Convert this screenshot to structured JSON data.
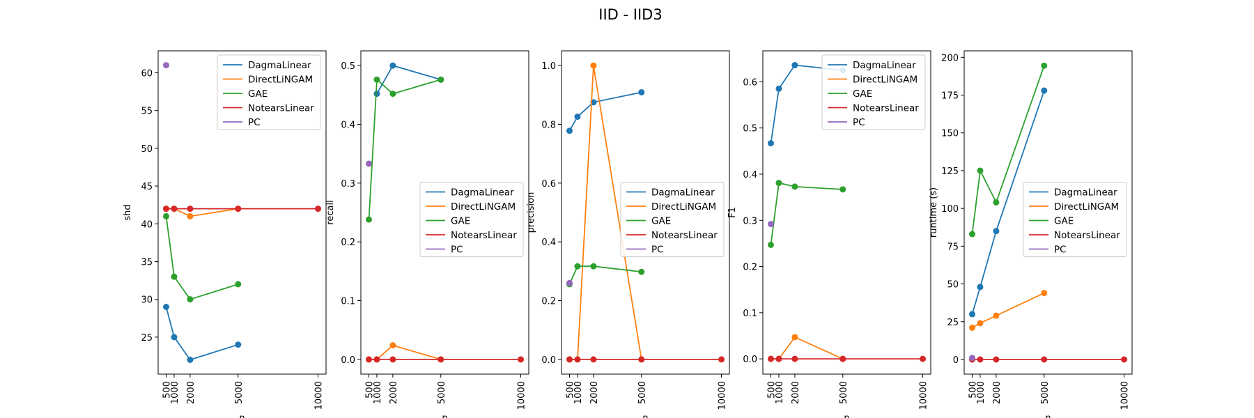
{
  "figure": {
    "title": "IID - IID3"
  },
  "series_colors": {
    "DagmaLinear": "#1f77b4",
    "DirectLiNGAM": "#ff7f0e",
    "GAE": "#2ca02c",
    "NotearsLinear": "#d62728",
    "PC": "#9467bd"
  },
  "chart_data": [
    {
      "type": "line",
      "xlabel": "n",
      "ylabel": "shd",
      "xlim": [
        0,
        10500
      ],
      "ylim": [
        20.1,
        62.9
      ],
      "xticks": [
        "500",
        "1000",
        "2000",
        "5000",
        "10000"
      ],
      "yticks": [
        "25",
        "30",
        "35",
        "40",
        "45",
        "50",
        "55",
        "60"
      ],
      "legend": "upper right",
      "series": [
        {
          "name": "DagmaLinear",
          "x": [
            500,
            1000,
            2000,
            5000
          ],
          "y": [
            29,
            25,
            22,
            24
          ]
        },
        {
          "name": "DirectLiNGAM",
          "x": [
            500,
            1000,
            2000,
            5000
          ],
          "y": [
            42,
            42,
            41,
            42
          ]
        },
        {
          "name": "GAE",
          "x": [
            500,
            1000,
            2000,
            5000
          ],
          "y": [
            41,
            33,
            30,
            32
          ]
        },
        {
          "name": "NotearsLinear",
          "x": [
            500,
            1000,
            2000,
            5000,
            10000
          ],
          "y": [
            42,
            42,
            42,
            42,
            42
          ]
        },
        {
          "name": "PC",
          "x": [
            500
          ],
          "y": [
            61
          ]
        }
      ]
    },
    {
      "type": "line",
      "xlabel": "n",
      "ylabel": "recall",
      "xlim": [
        0,
        10500
      ],
      "ylim": [
        -0.025,
        0.525
      ],
      "xticks": [
        "500",
        "1000",
        "2000",
        "5000",
        "10000"
      ],
      "yticks": [
        "0.0",
        "0.1",
        "0.2",
        "0.3",
        "0.4",
        "0.5"
      ],
      "legend": "center right",
      "series": [
        {
          "name": "DagmaLinear",
          "x": [
            1000,
            2000,
            5000
          ],
          "y": [
            0.452,
            0.5,
            0.476
          ]
        },
        {
          "name": "DirectLiNGAM",
          "x": [
            500,
            1000,
            2000,
            5000
          ],
          "y": [
            0,
            0,
            0.024,
            0
          ]
        },
        {
          "name": "GAE",
          "x": [
            500,
            1000,
            2000,
            5000
          ],
          "y": [
            0.238,
            0.476,
            0.452,
            0.476
          ]
        },
        {
          "name": "NotearsLinear",
          "x": [
            500,
            1000,
            2000,
            5000,
            10000
          ],
          "y": [
            0,
            0,
            0,
            0,
            0
          ]
        },
        {
          "name": "PC",
          "x": [
            500
          ],
          "y": [
            0.333
          ]
        }
      ]
    },
    {
      "type": "line",
      "xlabel": "n",
      "ylabel": "precision",
      "xlim": [
        0,
        10500
      ],
      "ylim": [
        -0.05,
        1.05
      ],
      "xticks": [
        "500",
        "1000",
        "2000",
        "5000",
        "10000"
      ],
      "yticks": [
        "0.0",
        "0.2",
        "0.4",
        "0.6",
        "0.8",
        "1.0"
      ],
      "legend": "center right",
      "series": [
        {
          "name": "DagmaLinear",
          "x": [
            500,
            1000,
            2000,
            5000
          ],
          "y": [
            0.778,
            0.826,
            0.875,
            0.909
          ]
        },
        {
          "name": "DirectLiNGAM",
          "x": [
            500,
            1000,
            2000,
            5000
          ],
          "y": [
            0,
            0,
            1.0,
            0
          ]
        },
        {
          "name": "GAE",
          "x": [
            500,
            1000,
            2000,
            5000
          ],
          "y": [
            0.256,
            0.317,
            0.317,
            0.298
          ]
        },
        {
          "name": "NotearsLinear",
          "x": [
            500,
            1000,
            2000,
            5000,
            10000
          ],
          "y": [
            0,
            0,
            0,
            0,
            0
          ]
        },
        {
          "name": "PC",
          "x": [
            500
          ],
          "y": [
            0.26
          ]
        }
      ]
    },
    {
      "type": "line",
      "xlabel": "n",
      "ylabel": "F1",
      "xlim": [
        0,
        10500
      ],
      "ylim": [
        -0.033,
        0.667
      ],
      "xticks": [
        "500",
        "1000",
        "2000",
        "5000",
        "10000"
      ],
      "yticks": [
        "0.0",
        "0.1",
        "0.2",
        "0.3",
        "0.4",
        "0.5",
        "0.6"
      ],
      "legend": "upper right",
      "series": [
        {
          "name": "DagmaLinear",
          "x": [
            500,
            1000,
            2000,
            5000
          ],
          "y": [
            0.467,
            0.585,
            0.636,
            0.625
          ]
        },
        {
          "name": "DirectLiNGAM",
          "x": [
            500,
            1000,
            2000,
            5000
          ],
          "y": [
            0,
            0,
            0.047,
            0
          ]
        },
        {
          "name": "GAE",
          "x": [
            500,
            1000,
            2000,
            5000
          ],
          "y": [
            0.247,
            0.381,
            0.373,
            0.367
          ]
        },
        {
          "name": "NotearsLinear",
          "x": [
            500,
            1000,
            2000,
            5000,
            10000
          ],
          "y": [
            0,
            0,
            0,
            0,
            0
          ]
        },
        {
          "name": "PC",
          "x": [
            500
          ],
          "y": [
            0.292
          ]
        }
      ]
    },
    {
      "type": "line",
      "xlabel": "n",
      "ylabel": "runtime (s)",
      "xlim": [
        0,
        10500
      ],
      "ylim": [
        -9.7,
        204.3
      ],
      "xticks": [
        "500",
        "1000",
        "2000",
        "5000",
        "10000"
      ],
      "yticks": [
        "0",
        "25",
        "50",
        "75",
        "100",
        "125",
        "150",
        "175",
        "200"
      ],
      "legend": "center right",
      "series": [
        {
          "name": "DagmaLinear",
          "x": [
            500,
            1000,
            2000,
            5000
          ],
          "y": [
            30,
            48,
            85,
            178
          ]
        },
        {
          "name": "DirectLiNGAM",
          "x": [
            500,
            1000,
            2000,
            5000
          ],
          "y": [
            21,
            24,
            29,
            44
          ]
        },
        {
          "name": "GAE",
          "x": [
            500,
            1000,
            2000,
            5000
          ],
          "y": [
            83,
            125,
            104,
            194.5
          ]
        },
        {
          "name": "NotearsLinear",
          "x": [
            500,
            1000,
            2000,
            5000,
            10000
          ],
          "y": [
            0,
            0,
            0,
            0,
            0
          ]
        },
        {
          "name": "PC",
          "x": [
            500
          ],
          "y": [
            1
          ]
        }
      ]
    }
  ]
}
